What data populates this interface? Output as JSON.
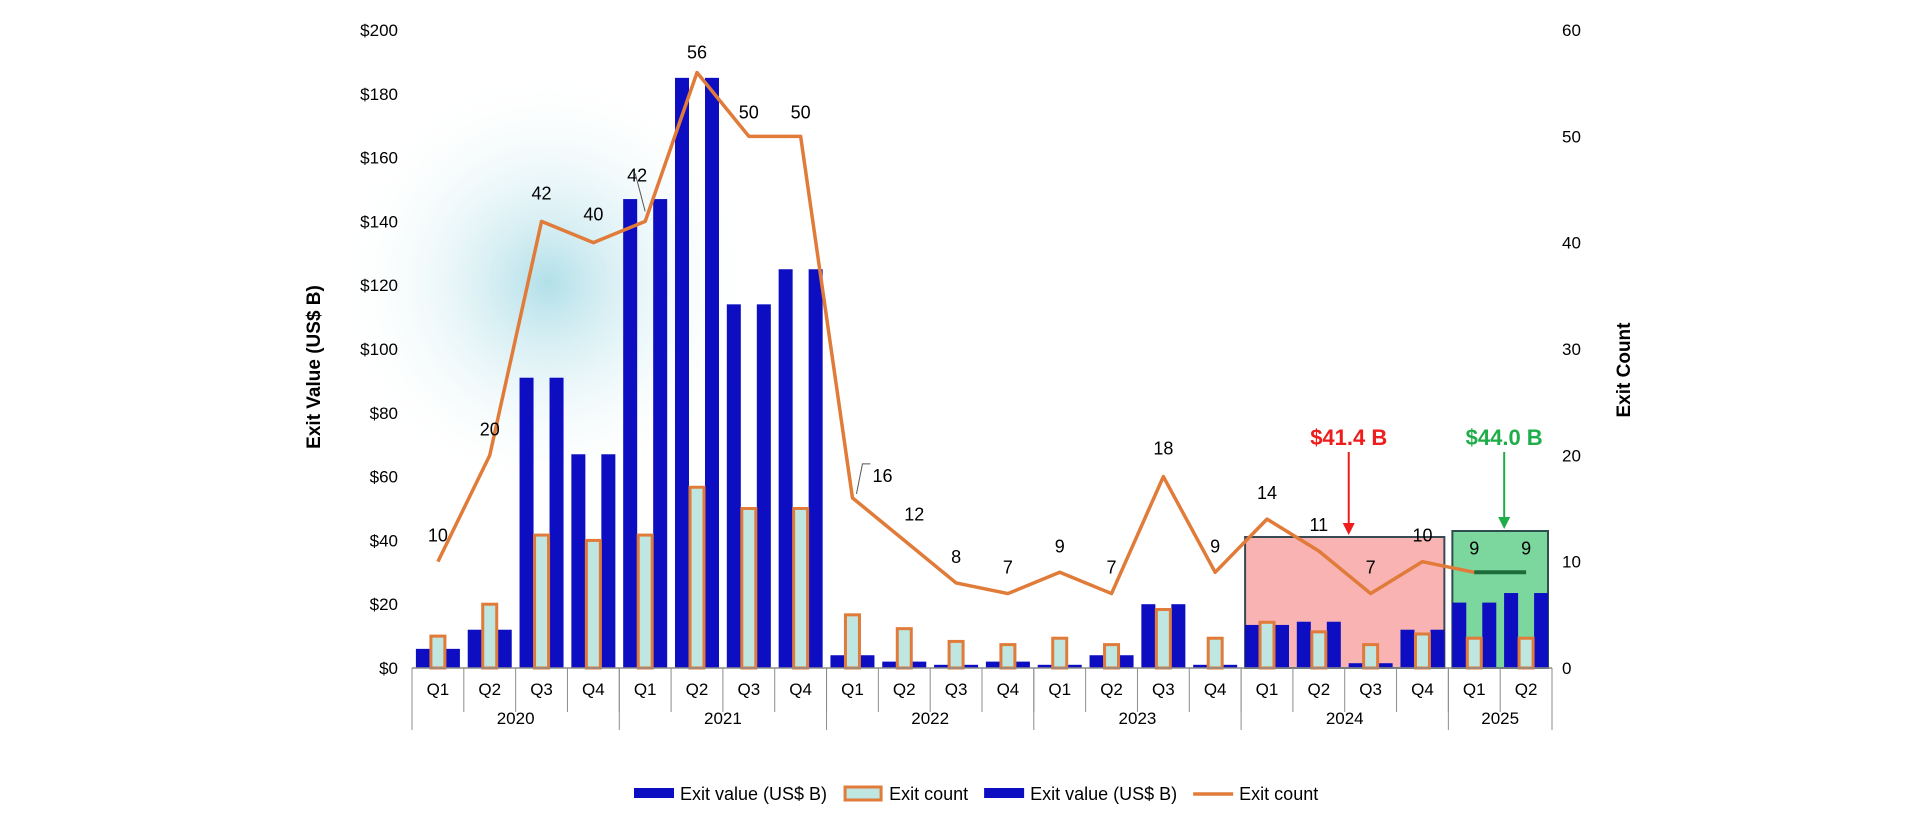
{
  "chart_data": {
    "type": "bar",
    "categories": [
      "Q1",
      "Q2",
      "Q3",
      "Q4",
      "Q1",
      "Q2",
      "Q3",
      "Q4",
      "Q1",
      "Q2",
      "Q3",
      "Q4",
      "Q1",
      "Q2",
      "Q3",
      "Q4",
      "Q1",
      "Q2",
      "Q3",
      "Q4",
      "Q1",
      "Q2"
    ],
    "years": [
      {
        "label": "2020",
        "quarters": 4
      },
      {
        "label": "2021",
        "quarters": 4
      },
      {
        "label": "2022",
        "quarters": 4
      },
      {
        "label": "2023",
        "quarters": 4
      },
      {
        "label": "2024",
        "quarters": 4
      },
      {
        "label": "2025",
        "quarters": 2
      }
    ],
    "series": [
      {
        "name": "Exit value (US$ B)",
        "axis": "left",
        "kind": "bar",
        "color": "#0d0dc2",
        "values": [
          6,
          12,
          91,
          67,
          147,
          185,
          114,
          125,
          4,
          2,
          1,
          2,
          1,
          4,
          20,
          1,
          13.5,
          14.5,
          1.5,
          12,
          20.5,
          23.5
        ]
      },
      {
        "name": "Exit count",
        "axis": "right",
        "kind": "bar",
        "color": "#bfe6e0",
        "border": "#e07b39",
        "values": [
          3,
          6,
          12.5,
          12,
          12.5,
          17,
          15,
          15,
          5,
          3.7,
          2.5,
          2.2,
          2.8,
          2.2,
          5.5,
          2.8,
          4.3,
          3.4,
          2.2,
          3.2,
          2.8,
          2.8
        ]
      },
      {
        "name": "Exit value (US$ B)",
        "axis": "left",
        "kind": "bar",
        "color": "#0d0dc2",
        "values": [
          6,
          12,
          91,
          67,
          147,
          185,
          114,
          125,
          4,
          2,
          1,
          2,
          1,
          4,
          20,
          1,
          13.5,
          14.5,
          1.5,
          12,
          20.5,
          23.5
        ]
      },
      {
        "name": "Exit count",
        "axis": "right",
        "kind": "line",
        "color": "#e07b39",
        "values": [
          10,
          20,
          42,
          40,
          42,
          56,
          50,
          50,
          16,
          12,
          8,
          7,
          9,
          7,
          18,
          9,
          14,
          11,
          7,
          10,
          9,
          9
        ]
      }
    ],
    "data_labels": [
      "10",
      "20",
      "42",
      "40",
      "42",
      "56",
      "50",
      "50",
      "16",
      "12",
      "8",
      "7",
      "9",
      "7",
      "18",
      "9",
      "14",
      "11",
      "7",
      "10",
      "9",
      "9"
    ],
    "y_left": {
      "label": "Exit Value (US$ B)",
      "min": 0,
      "max": 200,
      "step": 20,
      "ticks": [
        "$0",
        "$20",
        "$40",
        "$60",
        "$80",
        "$100",
        "$120",
        "$140",
        "$160",
        "$180",
        "$200"
      ]
    },
    "y_right": {
      "label": "Exit Count",
      "min": 0,
      "max": 60,
      "step": 10,
      "ticks": [
        "0",
        "10",
        "20",
        "30",
        "40",
        "50",
        "60"
      ]
    },
    "legend_position": "bottom",
    "grid": false,
    "highlights": [
      {
        "range": [
          16,
          19
        ],
        "fill": "#f79a9a",
        "border": "#3a4a55",
        "label": "$41.4 B",
        "label_color": "#ee1c1c",
        "arrow_color": "#ee1c1c"
      },
      {
        "range": [
          20,
          21
        ],
        "fill": "#4fc97e",
        "border": "#2f4f4f",
        "label": "$44.0 B",
        "label_color": "#1fad4a",
        "arrow_color": "#1fad4a"
      }
    ]
  }
}
